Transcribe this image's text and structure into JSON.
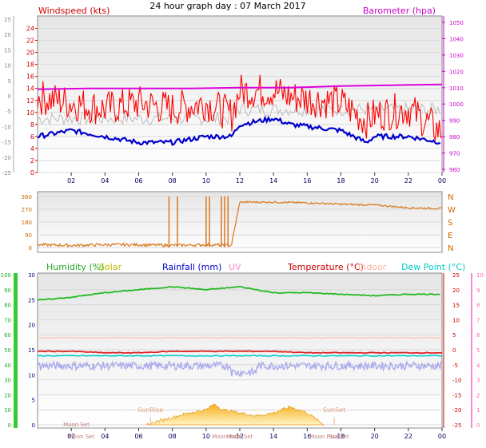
{
  "page_title": "24 hour graph day : 07 March 2017",
  "chart_data": [
    {
      "type": "line",
      "panel": "wind-barometer",
      "title": "24 hour graph day : 07 March 2017",
      "left_axis_label": "Windspeed (kts)",
      "right_axis_label": "Barometer (hpa)",
      "x_ticks": [
        "02",
        "04",
        "06",
        "08",
        "10",
        "12",
        "14",
        "16",
        "18",
        "20",
        "22",
        "00"
      ],
      "y_ticks_wind": [
        "24",
        "22",
        "20",
        "18",
        "16",
        "14",
        "12",
        "10",
        "8",
        "6",
        "4",
        "2",
        "0"
      ],
      "y_ticks_outer": [
        "25",
        "20",
        "15",
        "10",
        "5",
        "0",
        "-5",
        "-10",
        "-15",
        "-20",
        "-25"
      ],
      "y_ticks_baro": [
        "1050",
        "1040",
        "1030",
        "1020",
        "1010",
        "1000",
        "990",
        "980",
        "970",
        "960"
      ],
      "ylim_wind": [
        0,
        25
      ],
      "ylim_baro": [
        960,
        1050
      ],
      "colors": {
        "wind_gust": "#ff0000",
        "wind_avg": "#0000cc",
        "wind_direction_trace": "#bbbbbb",
        "barometer": "#dd00dd"
      },
      "series": [
        {
          "x": [
            0,
            2,
            4,
            6,
            8,
            10,
            11.5,
            12,
            14,
            15,
            18,
            19.5,
            20,
            22,
            24
          ],
          "gust": [
            12,
            11,
            10,
            11,
            10,
            11,
            9,
            13,
            13,
            12,
            11,
            8,
            9,
            10,
            6
          ],
          "avg": [
            6,
            7,
            6,
            5,
            5,
            6,
            6,
            8,
            9,
            8,
            7,
            5,
            6,
            6,
            5
          ]
        },
        {
          "x": [
            0,
            3,
            6,
            9,
            12,
            15,
            18,
            21,
            24
          ],
          "barometer": [
            1009,
            1009.5,
            1009.5,
            1009.5,
            1010,
            1010,
            1011,
            1011.5,
            1012
          ]
        }
      ]
    },
    {
      "type": "scatter",
      "panel": "wind-direction",
      "y_ticks": [
        "360",
        "270",
        "180",
        "90",
        "0"
      ],
      "compass": [
        "N",
        "W",
        "S",
        "E",
        "N"
      ],
      "ylim": [
        0,
        360
      ],
      "x": [
        0,
        2,
        4,
        6,
        8,
        10,
        11.5,
        12,
        14,
        16,
        18,
        20,
        22,
        24
      ],
      "values": [
        20,
        15,
        20,
        20,
        15,
        20,
        15,
        320,
        320,
        315,
        305,
        300,
        280,
        275
      ]
    },
    {
      "type": "line",
      "panel": "humidity-temperature",
      "legend": [
        "Humidity (%)",
        "Solar",
        "Rainfall (mm)",
        "UV",
        "Temperature (°C)",
        "Indoor",
        "Dew Point (°C)"
      ],
      "legend_colors": [
        "#22aa22",
        "#cccc00",
        "#0000cc",
        "#ff88cc",
        "#cc0000",
        "#ffb0a0",
        "#00cccc"
      ],
      "y_ticks_humidity": [
        "100",
        "90",
        "80",
        "70",
        "60",
        "50",
        "40",
        "30",
        "20",
        "10",
        "0"
      ],
      "y_ticks_rain": [
        "30",
        "25",
        "20",
        "15",
        "10",
        "5",
        "0"
      ],
      "y_ticks_temp": [
        "25",
        "20",
        "15",
        "10",
        "5",
        "0",
        "-5",
        "-10",
        "-15",
        "-20",
        "-25"
      ],
      "y_ticks_uv": [
        "10",
        "9",
        "8",
        "7",
        "6",
        "5",
        "4",
        "3",
        "2",
        "1",
        "0"
      ],
      "ylim_humidity": [
        0,
        100
      ],
      "ylim_temp": [
        -25,
        25
      ],
      "x_ticks": [
        "02",
        "04",
        "06",
        "08",
        "10",
        "12",
        "14",
        "16",
        "18",
        "20",
        "22",
        "00"
      ],
      "annotations": [
        "Moon Set",
        "SunRise",
        "SunSet",
        "Moon Set",
        "Moon Rise",
        "Moon Set",
        "Moon Rise",
        "SunSet"
      ],
      "series": [
        {
          "name": "Humidity (%)",
          "x": [
            0,
            2,
            4,
            6,
            8,
            10,
            12,
            14,
            16,
            18,
            20,
            22,
            24
          ],
          "values": [
            83,
            85,
            88,
            90,
            92,
            90,
            92,
            88,
            88,
            87,
            86,
            87,
            87
          ]
        },
        {
          "name": "Temperature (°C)",
          "x": [
            0,
            2,
            4,
            6,
            8,
            10,
            12,
            14,
            16,
            18,
            20,
            24
          ],
          "values": [
            -0.5,
            -0.5,
            -1,
            -1,
            -0.5,
            -0.5,
            -0.5,
            -0.5,
            -1,
            -1,
            -1,
            -1
          ]
        },
        {
          "name": "Dew Point (°C)",
          "x": [
            0,
            4,
            8,
            12,
            16,
            20,
            24
          ],
          "values": [
            -2,
            -2,
            -2,
            -2,
            -2,
            -2,
            -2
          ]
        },
        {
          "name": "Indoor",
          "x": [
            0,
            12,
            24
          ],
          "values": [
            4,
            4,
            4
          ]
        },
        {
          "name": "Solar",
          "x": [
            6.5,
            7,
            8,
            9,
            10,
            10.5,
            11,
            12,
            13,
            14,
            14.5,
            15,
            16,
            17
          ],
          "values": [
            0,
            2,
            5,
            8,
            10,
            14,
            10,
            8,
            6,
            8,
            10,
            12,
            8,
            0
          ]
        }
      ]
    }
  ]
}
